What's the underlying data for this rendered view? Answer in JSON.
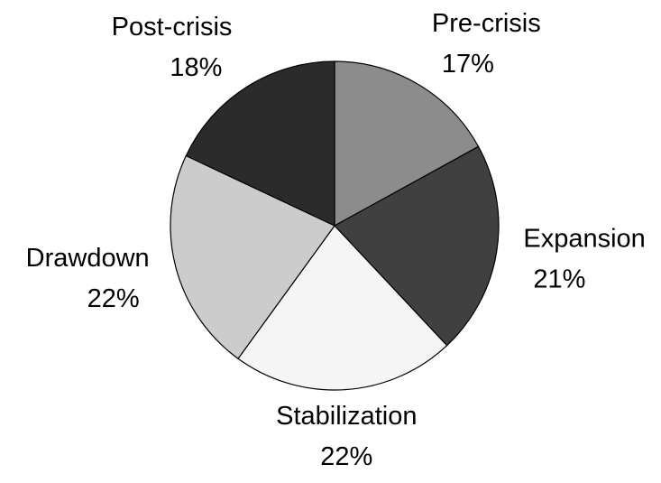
{
  "chart_data": {
    "type": "pie",
    "categories": [
      "Pre-crisis",
      "Expansion",
      "Stabilization",
      "Drawdown",
      "Post-crisis"
    ],
    "values": [
      17,
      21,
      22,
      22,
      18
    ],
    "value_labels": [
      "17%",
      "21%",
      "22%",
      "22%",
      "18%"
    ],
    "colors": [
      "#8c8c8c",
      "#404040",
      "#f5f5f5",
      "#cccccc",
      "#2b2b2b"
    ]
  }
}
